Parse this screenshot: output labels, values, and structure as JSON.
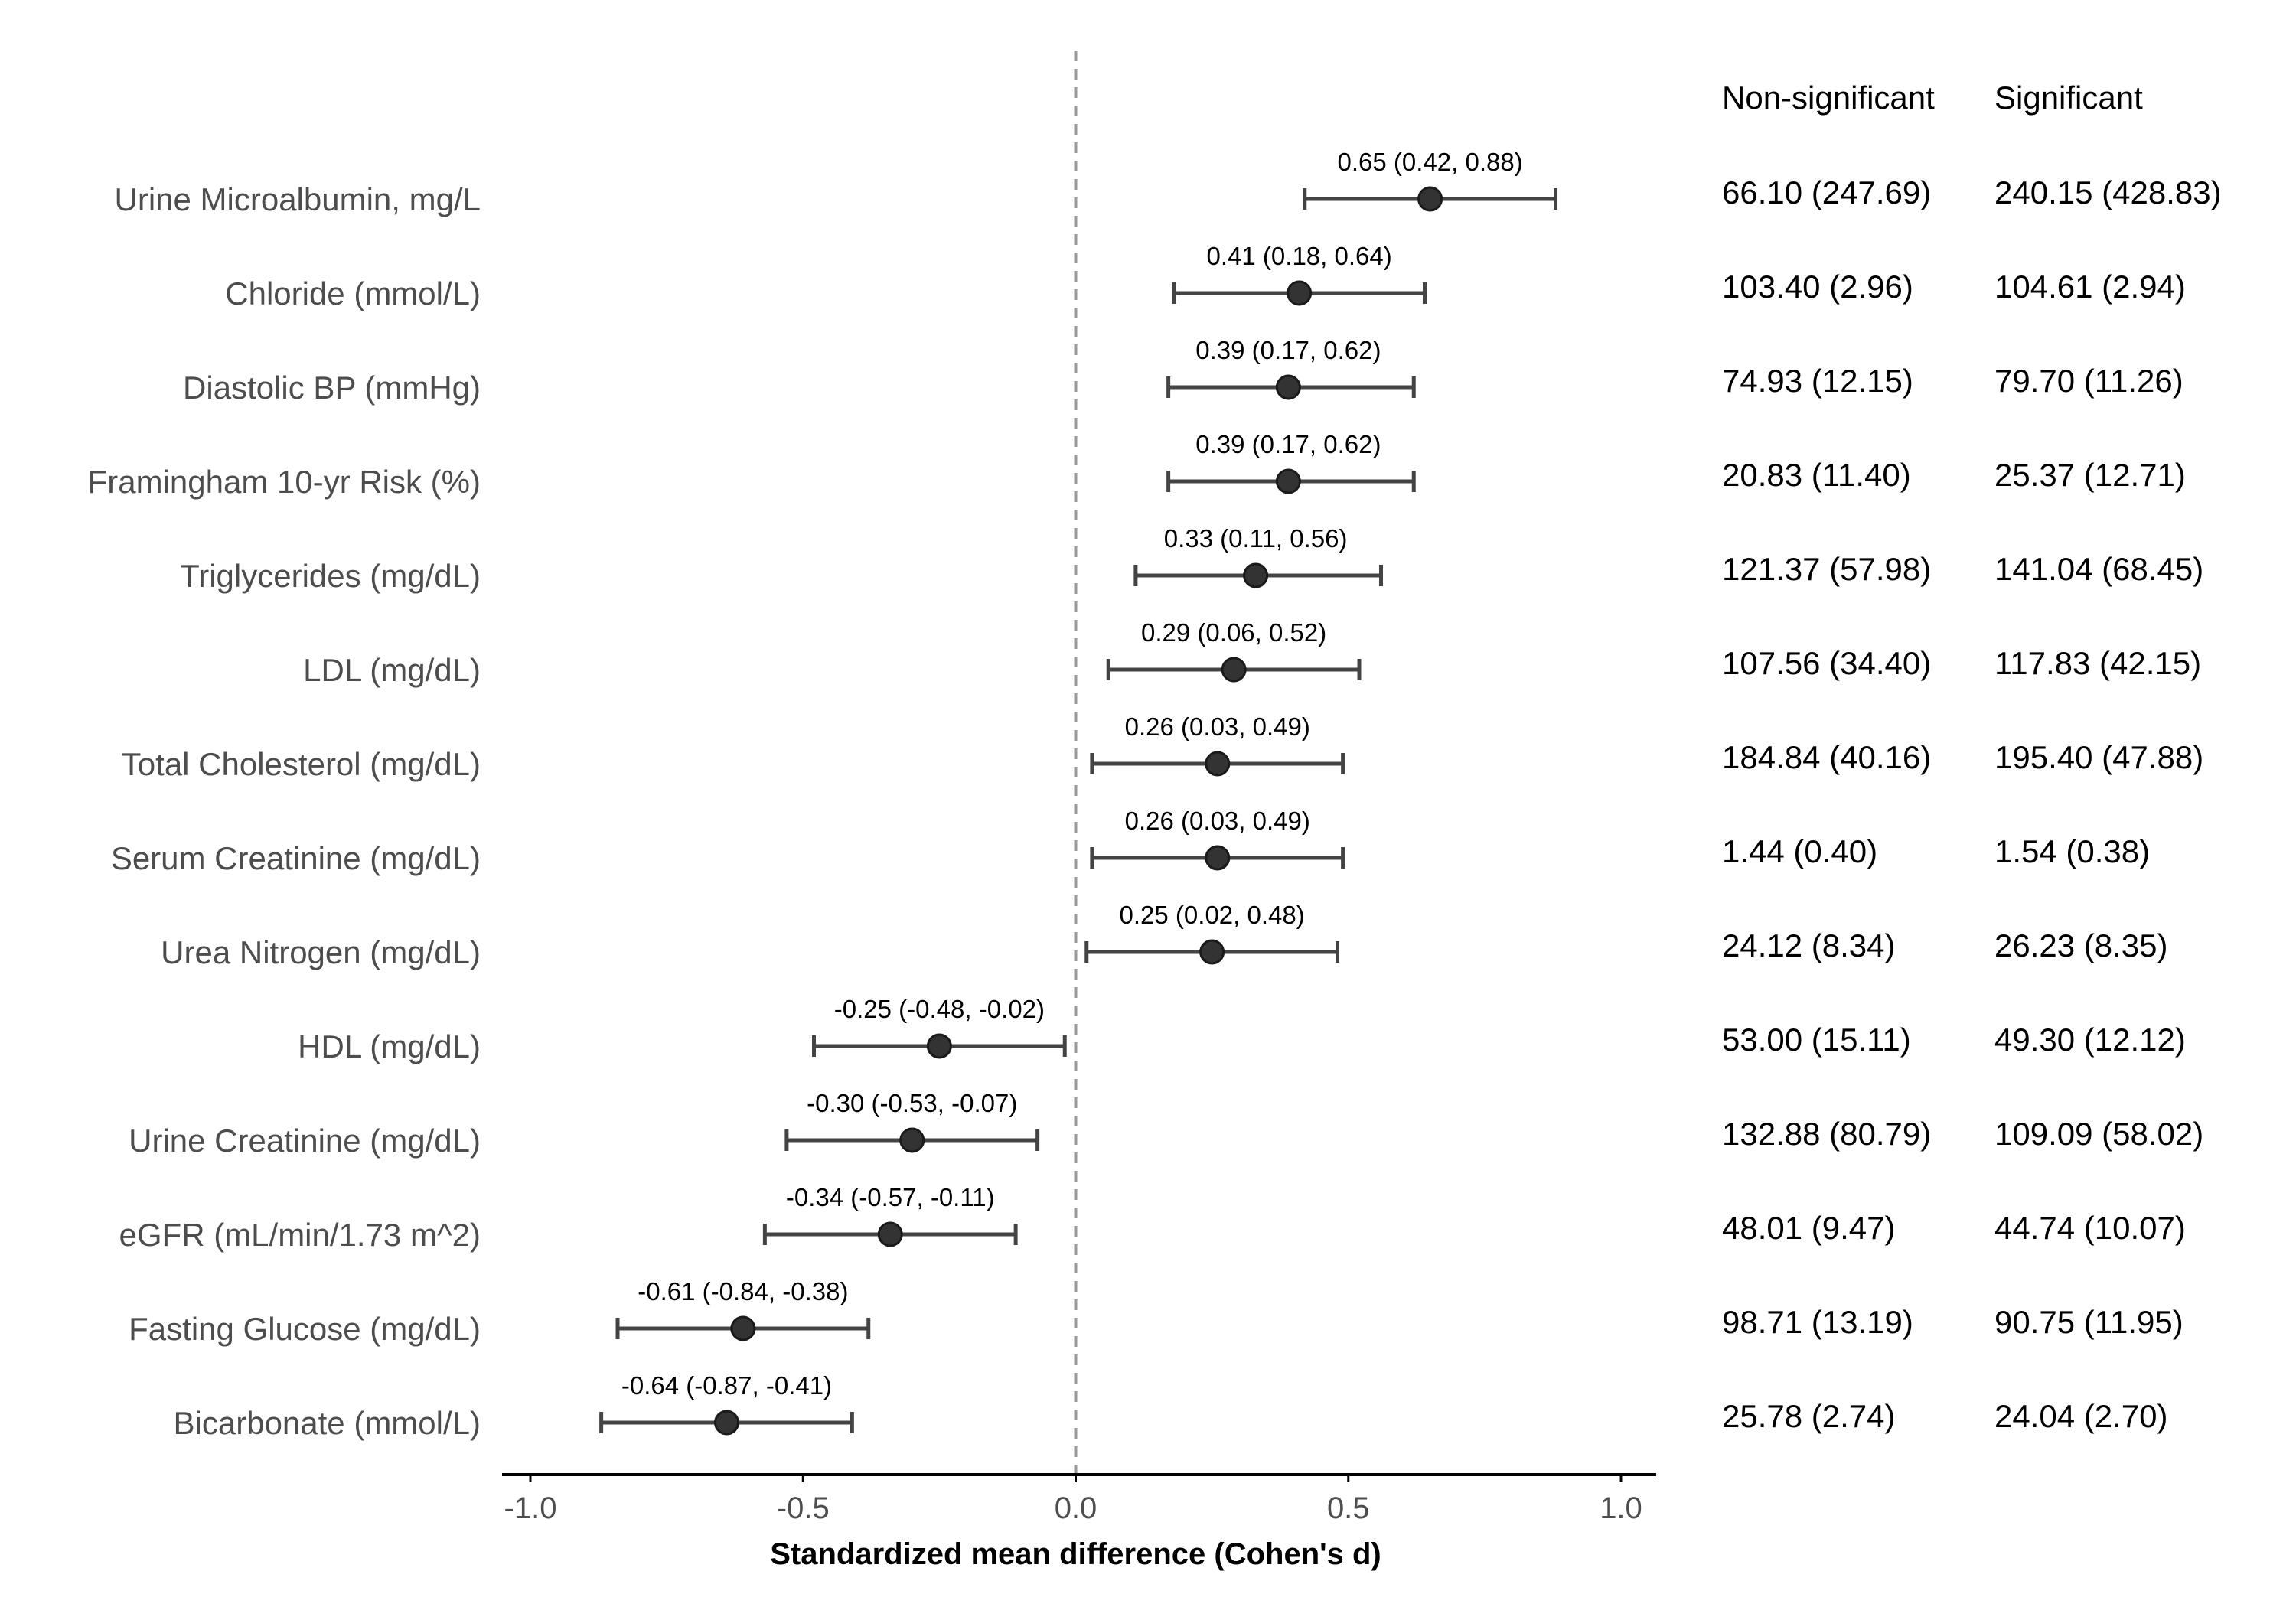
{
  "chart_data": {
    "type": "forest",
    "xlabel": "Standardized mean difference (Cohen's d)",
    "xlim": [
      -1.0,
      1.0
    ],
    "x_ticks": [
      "-1.0",
      "-0.5",
      "0.0",
      "0.5",
      "1.0"
    ],
    "x_tick_values": [
      -1.0,
      -0.5,
      0.0,
      0.5,
      1.0
    ],
    "reference_line": 0.0,
    "grid": false,
    "columns": [
      "Non-significant",
      "Significant"
    ],
    "rows": [
      {
        "label": "Urine Microalbumin, mg/L",
        "d": 0.65,
        "lo": 0.42,
        "hi": 0.88,
        "ci_text": "0.65 (0.42, 0.88)",
        "nonsig": "66.10 (247.69)",
        "sig": "240.15 (428.83)"
      },
      {
        "label": "Chloride (mmol/L)",
        "d": 0.41,
        "lo": 0.18,
        "hi": 0.64,
        "ci_text": "0.41 (0.18, 0.64)",
        "nonsig": "103.40 (2.96)",
        "sig": "104.61 (2.94)"
      },
      {
        "label": "Diastolic BP (mmHg)",
        "d": 0.39,
        "lo": 0.17,
        "hi": 0.62,
        "ci_text": "0.39 (0.17, 0.62)",
        "nonsig": "74.93 (12.15)",
        "sig": "79.70 (11.26)"
      },
      {
        "label": "Framingham 10-yr Risk (%)",
        "d": 0.39,
        "lo": 0.17,
        "hi": 0.62,
        "ci_text": "0.39 (0.17, 0.62)",
        "nonsig": "20.83 (11.40)",
        "sig": "25.37 (12.71)"
      },
      {
        "label": "Triglycerides (mg/dL)",
        "d": 0.33,
        "lo": 0.11,
        "hi": 0.56,
        "ci_text": "0.33 (0.11, 0.56)",
        "nonsig": "121.37 (57.98)",
        "sig": "141.04 (68.45)"
      },
      {
        "label": "LDL (mg/dL)",
        "d": 0.29,
        "lo": 0.06,
        "hi": 0.52,
        "ci_text": "0.29 (0.06, 0.52)",
        "nonsig": "107.56 (34.40)",
        "sig": "117.83 (42.15)"
      },
      {
        "label": "Total Cholesterol (mg/dL)",
        "d": 0.26,
        "lo": 0.03,
        "hi": 0.49,
        "ci_text": "0.26 (0.03, 0.49)",
        "nonsig": "184.84 (40.16)",
        "sig": "195.40 (47.88)"
      },
      {
        "label": "Serum Creatinine (mg/dL)",
        "d": 0.26,
        "lo": 0.03,
        "hi": 0.49,
        "ci_text": "0.26 (0.03, 0.49)",
        "nonsig": "1.44 (0.40)",
        "sig": "1.54 (0.38)"
      },
      {
        "label": "Urea Nitrogen (mg/dL)",
        "d": 0.25,
        "lo": 0.02,
        "hi": 0.48,
        "ci_text": "0.25 (0.02, 0.48)",
        "nonsig": "24.12 (8.34)",
        "sig": "26.23 (8.35)"
      },
      {
        "label": "HDL (mg/dL)",
        "d": -0.25,
        "lo": -0.48,
        "hi": -0.02,
        "ci_text": "-0.25 (-0.48, -0.02)",
        "nonsig": "53.00 (15.11)",
        "sig": "49.30 (12.12)"
      },
      {
        "label": "Urine Creatinine (mg/dL)",
        "d": -0.3,
        "lo": -0.53,
        "hi": -0.07,
        "ci_text": "-0.30 (-0.53, -0.07)",
        "nonsig": "132.88 (80.79)",
        "sig": "109.09 (58.02)"
      },
      {
        "label": "eGFR (mL/min/1.73 m^2)",
        "d": -0.34,
        "lo": -0.57,
        "hi": -0.11,
        "ci_text": "-0.34 (-0.57, -0.11)",
        "nonsig": "48.01 (9.47)",
        "sig": "44.74 (10.07)"
      },
      {
        "label": "Fasting Glucose (mg/dL)",
        "d": -0.61,
        "lo": -0.84,
        "hi": -0.38,
        "ci_text": "-0.61 (-0.84, -0.38)",
        "nonsig": "98.71 (13.19)",
        "sig": "90.75 (11.95)"
      },
      {
        "label": "Bicarbonate (mmol/L)",
        "d": -0.64,
        "lo": -0.87,
        "hi": -0.41,
        "ci_text": "-0.64 (-0.87, -0.41)",
        "nonsig": "25.78 (2.74)",
        "sig": "24.04 (2.70)"
      }
    ],
    "colors": {
      "point": "#333333",
      "whisker": "#444444",
      "reference_line": "#999999",
      "axis": "#000000"
    }
  }
}
